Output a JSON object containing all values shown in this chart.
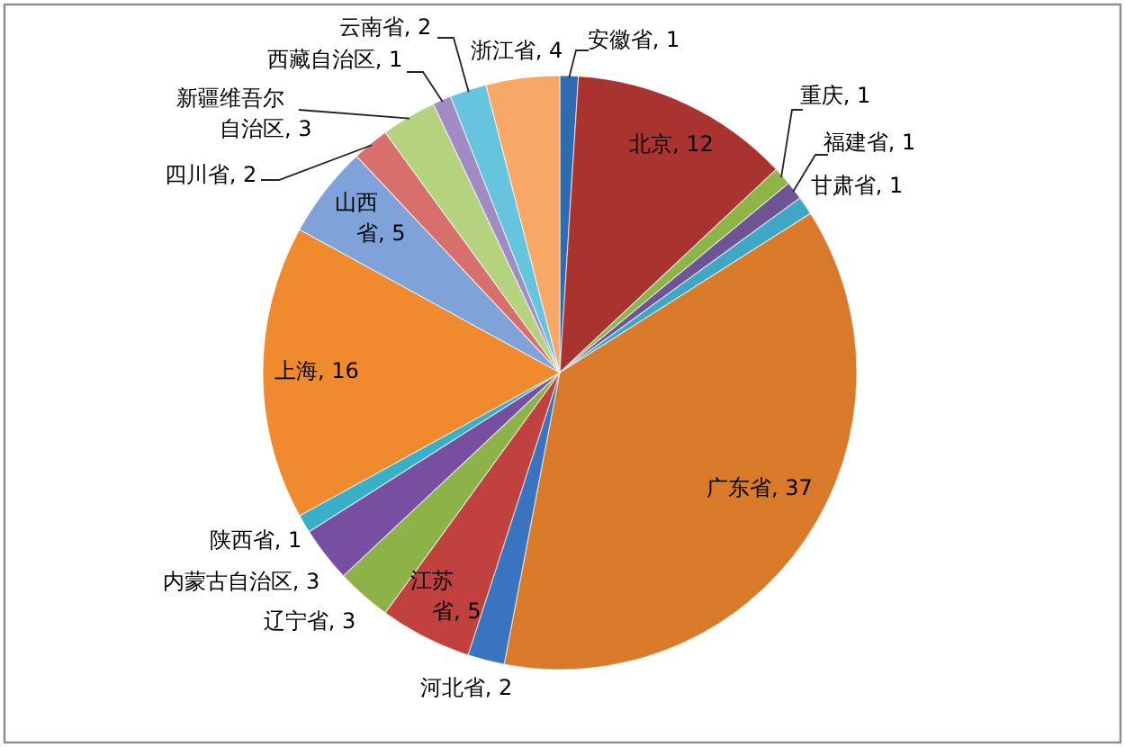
{
  "chart_data": {
    "type": "pie",
    "categories": [
      "安徽省",
      "北京",
      "重庆",
      "福建省",
      "甘肃省",
      "广东省",
      "河北省",
      "江苏省",
      "辽宁省",
      "内蒙古自治区",
      "陕西省",
      "上海",
      "山西省",
      "四川省",
      "新疆维吾尔自治区",
      "西藏自治区",
      "云南省",
      "浙江省"
    ],
    "values": [
      1,
      12,
      1,
      1,
      1,
      37,
      2,
      5,
      3,
      3,
      1,
      16,
      5,
      2,
      3,
      1,
      2,
      4
    ],
    "value_labels": [
      ", 1",
      ", 12",
      ", 1",
      ", 1",
      ", 1",
      ", 37",
      ", 2",
      ", 5",
      ", 3",
      ", 3",
      ", 1",
      ", 16",
      ", 5",
      ", 2",
      ", 3",
      ", 1",
      ", 2",
      ", 4"
    ],
    "colors": [
      "#2e6bb0",
      "#a8332f",
      "#8cb447",
      "#6e5494",
      "#3fa7c3",
      "#d9792a",
      "#3a73c0",
      "#c0413d",
      "#8db247",
      "#774fa0",
      "#3aafc8",
      "#f08a2f",
      "#7fa2d8",
      "#d7706c",
      "#b5d37f",
      "#a08bc5",
      "#67c4de",
      "#f8a866"
    ]
  }
}
